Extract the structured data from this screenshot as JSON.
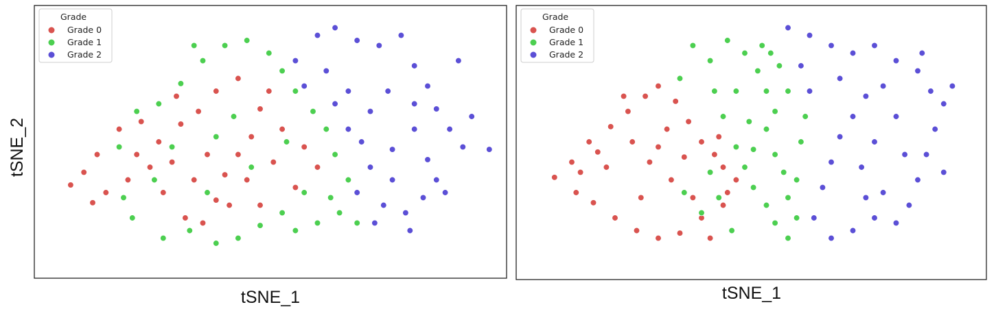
{
  "colors": {
    "Grade 0": "#d9534f",
    "Grade 1": "#4ccf50",
    "Grade 2": "#5b4fd6"
  },
  "shared_ylabel": "tSNE_2",
  "chart_data": [
    {
      "type": "scatter",
      "title": "",
      "xlabel": "tSNE_1",
      "ylabel": "",
      "xlim": [
        0,
        100
      ],
      "ylim": [
        0,
        100
      ],
      "grid": false,
      "legend": {
        "title": "Grade",
        "position": "top-left",
        "entries": [
          "Grade 0",
          "Grade 1",
          "Grade 2"
        ]
      },
      "series": [
        {
          "name": "Grade 0",
          "points": [
            [
              7,
              33
            ],
            [
              10,
              38
            ],
            [
              13,
              45
            ],
            [
              18,
              55
            ],
            [
              23,
              58
            ],
            [
              27,
              50
            ],
            [
              30,
              42
            ],
            [
              28,
              30
            ],
            [
              33,
              20
            ],
            [
              37,
              18
            ],
            [
              40,
              27
            ],
            [
              42,
              37
            ],
            [
              45,
              45
            ],
            [
              48,
              52
            ],
            [
              50,
              63
            ],
            [
              52,
              70
            ],
            [
              45,
              75
            ],
            [
              40,
              70
            ],
            [
              36,
              62
            ],
            [
              32,
              57
            ],
            [
              25,
              40
            ],
            [
              20,
              35
            ],
            [
              15,
              30
            ],
            [
              12,
              26
            ],
            [
              22,
              45
            ],
            [
              35,
              35
            ],
            [
              43,
              25
            ],
            [
              47,
              35
            ],
            [
              53,
              42
            ],
            [
              55,
              55
            ],
            [
              60,
              48
            ],
            [
              63,
              40
            ],
            [
              58,
              32
            ],
            [
              50,
              25
            ],
            [
              38,
              45
            ],
            [
              31,
              68
            ]
          ]
        },
        {
          "name": "Grade 1",
          "points": [
            [
              22,
              62
            ],
            [
              27,
              65
            ],
            [
              32,
              73
            ],
            [
              37,
              82
            ],
            [
              42,
              88
            ],
            [
              47,
              90
            ],
            [
              52,
              85
            ],
            [
              55,
              78
            ],
            [
              58,
              70
            ],
            [
              62,
              62
            ],
            [
              65,
              55
            ],
            [
              67,
              45
            ],
            [
              70,
              35
            ],
            [
              68,
              22
            ],
            [
              63,
              18
            ],
            [
              58,
              15
            ],
            [
              55,
              22
            ],
            [
              50,
              17
            ],
            [
              45,
              12
            ],
            [
              40,
              10
            ],
            [
              34,
              15
            ],
            [
              28,
              12
            ],
            [
              21,
              20
            ],
            [
              19,
              28
            ],
            [
              30,
              48
            ],
            [
              40,
              52
            ],
            [
              48,
              40
            ],
            [
              56,
              50
            ],
            [
              60,
              30
            ],
            [
              66,
              28
            ],
            [
              35,
              88
            ],
            [
              44,
              60
            ],
            [
              26,
              35
            ],
            [
              38,
              30
            ],
            [
              72,
              18
            ],
            [
              18,
              48
            ]
          ]
        },
        {
          "name": "Grade 2",
          "points": [
            [
              63,
              92
            ],
            [
              67,
              95
            ],
            [
              72,
              90
            ],
            [
              77,
              88
            ],
            [
              82,
              92
            ],
            [
              85,
              80
            ],
            [
              88,
              72
            ],
            [
              90,
              63
            ],
            [
              93,
              55
            ],
            [
              96,
              48
            ],
            [
              98,
              60
            ],
            [
              85,
              55
            ],
            [
              80,
              47
            ],
            [
              75,
              40
            ],
            [
              72,
              30
            ],
            [
              78,
              25
            ],
            [
              83,
              22
            ],
            [
              87,
              28
            ],
            [
              90,
              35
            ],
            [
              65,
              78
            ],
            [
              70,
              70
            ],
            [
              75,
              62
            ],
            [
              79,
              70
            ],
            [
              85,
              65
            ],
            [
              88,
              43
            ],
            [
              70,
              55
            ],
            [
              67,
              65
            ],
            [
              60,
              72
            ],
            [
              58,
              82
            ],
            [
              73,
              50
            ],
            [
              80,
              35
            ],
            [
              92,
              30
            ],
            [
              84,
              15
            ],
            [
              76,
              18
            ],
            [
              102,
              47
            ],
            [
              95,
              82
            ]
          ]
        }
      ]
    },
    {
      "type": "scatter",
      "title": "",
      "xlabel": "tSNE_1",
      "ylabel": "",
      "xlim": [
        0,
        100
      ],
      "ylim": [
        0,
        100
      ],
      "grid": false,
      "legend": {
        "title": "Grade",
        "position": "top-left",
        "entries": [
          "Grade 0",
          "Grade 1",
          "Grade 2"
        ]
      },
      "series": [
        {
          "name": "Grade 0",
          "points": [
            [
              6,
              36
            ],
            [
              10,
              42
            ],
            [
              14,
              50
            ],
            [
              19,
              56
            ],
            [
              23,
              62
            ],
            [
              27,
              68
            ],
            [
              30,
              72
            ],
            [
              34,
              66
            ],
            [
              37,
              58
            ],
            [
              40,
              50
            ],
            [
              43,
              45
            ],
            [
              45,
              40
            ],
            [
              48,
              35
            ],
            [
              45,
              25
            ],
            [
              40,
              20
            ],
            [
              35,
              14
            ],
            [
              30,
              12
            ],
            [
              25,
              15
            ],
            [
              20,
              20
            ],
            [
              15,
              26
            ],
            [
              11,
              30
            ],
            [
              28,
              42
            ],
            [
              33,
              35
            ],
            [
              24,
              50
            ],
            [
              18,
              40
            ],
            [
              38,
              28
            ],
            [
              44,
              52
            ],
            [
              32,
              55
            ],
            [
              26,
              28
            ],
            [
              42,
              12
            ],
            [
              16,
              46
            ],
            [
              36,
              44
            ],
            [
              22,
              68
            ],
            [
              30,
              48
            ],
            [
              46,
              30
            ],
            [
              12,
              38
            ]
          ]
        },
        {
          "name": "Grade 1",
          "points": [
            [
              38,
              88
            ],
            [
              42,
              82
            ],
            [
              46,
              90
            ],
            [
              50,
              85
            ],
            [
              53,
              78
            ],
            [
              55,
              70
            ],
            [
              57,
              62
            ],
            [
              55,
              55
            ],
            [
              52,
              47
            ],
            [
              50,
              40
            ],
            [
              52,
              32
            ],
            [
              55,
              25
            ],
            [
              57,
              18
            ],
            [
              60,
              12
            ],
            [
              62,
              35
            ],
            [
              63,
              50
            ],
            [
              60,
              70
            ],
            [
              58,
              80
            ],
            [
              48,
              70
            ],
            [
              45,
              60
            ],
            [
              48,
              48
            ],
            [
              44,
              28
            ],
            [
              40,
              22
            ],
            [
              42,
              38
            ],
            [
              54,
              88
            ],
            [
              60,
              28
            ],
            [
              64,
              60
            ],
            [
              47,
              15
            ],
            [
              35,
              75
            ],
            [
              57,
              45
            ],
            [
              43,
              70
            ],
            [
              51,
              58
            ],
            [
              59,
              38
            ],
            [
              36,
              30
            ],
            [
              62,
              20
            ],
            [
              56,
              85
            ]
          ]
        },
        {
          "name": "Grade 2",
          "points": [
            [
              60,
              95
            ],
            [
              65,
              92
            ],
            [
              70,
              88
            ],
            [
              75,
              85
            ],
            [
              80,
              88
            ],
            [
              85,
              82
            ],
            [
              90,
              78
            ],
            [
              93,
              70
            ],
            [
              96,
              65
            ],
            [
              94,
              55
            ],
            [
              92,
              45
            ],
            [
              90,
              35
            ],
            [
              88,
              25
            ],
            [
              85,
              18
            ],
            [
              80,
              20
            ],
            [
              75,
              15
            ],
            [
              70,
              12
            ],
            [
              66,
              20
            ],
            [
              68,
              32
            ],
            [
              70,
              42
            ],
            [
              72,
              52
            ],
            [
              75,
              60
            ],
            [
              78,
              68
            ],
            [
              82,
              72
            ],
            [
              85,
              60
            ],
            [
              80,
              50
            ],
            [
              77,
              40
            ],
            [
              82,
              30
            ],
            [
              87,
              45
            ],
            [
              72,
              75
            ],
            [
              65,
              70
            ],
            [
              63,
              80
            ],
            [
              98,
              72
            ],
            [
              91,
              85
            ],
            [
              78,
              28
            ],
            [
              96,
              38
            ]
          ]
        }
      ]
    }
  ]
}
